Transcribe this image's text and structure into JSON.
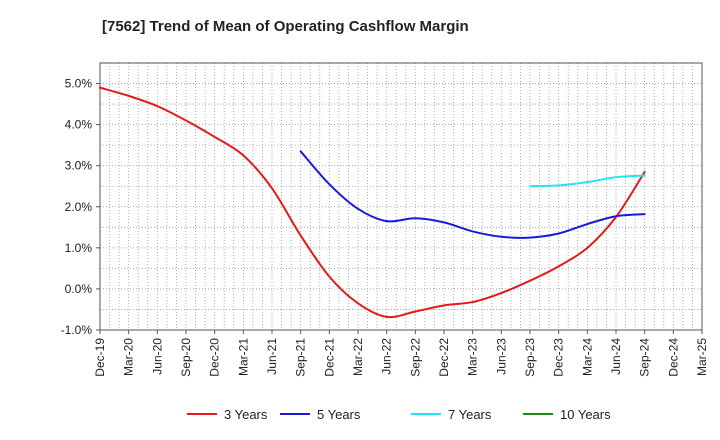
{
  "chart_data": {
    "type": "line",
    "title": "[7562]  Trend of Mean of Operating Cashflow Margin",
    "xlabel": "",
    "ylabel": "",
    "categories": [
      "Dec-19",
      "Mar-20",
      "Jun-20",
      "Sep-20",
      "Dec-20",
      "Mar-21",
      "Jun-21",
      "Sep-21",
      "Dec-21",
      "Mar-22",
      "Jun-22",
      "Sep-22",
      "Dec-22",
      "Mar-23",
      "Jun-23",
      "Sep-23",
      "Dec-23",
      "Mar-24",
      "Jun-24",
      "Sep-24",
      "Dec-24",
      "Mar-25"
    ],
    "ylim": [
      -1.0,
      5.5
    ],
    "yticks": [
      -1.0,
      0.0,
      1.0,
      2.0,
      3.0,
      4.0,
      5.0
    ],
    "ytick_labels": [
      "-1.0%",
      "0.0%",
      "1.0%",
      "2.0%",
      "3.0%",
      "4.0%",
      "5.0%"
    ],
    "grid": true,
    "legend_position": "bottom",
    "series": [
      {
        "name": "3 Years",
        "color": "#e31a1c",
        "values": [
          4.9,
          4.7,
          4.45,
          4.1,
          3.7,
          3.25,
          2.45,
          1.3,
          0.3,
          -0.35,
          -0.68,
          -0.55,
          -0.4,
          -0.32,
          -0.1,
          0.2,
          0.55,
          1.0,
          1.75,
          2.85,
          null,
          null
        ]
      },
      {
        "name": "5 Years",
        "color": "#1a1adb",
        "values": [
          null,
          null,
          null,
          null,
          null,
          null,
          null,
          3.35,
          2.55,
          1.95,
          1.65,
          1.72,
          1.62,
          1.4,
          1.27,
          1.25,
          1.35,
          1.58,
          1.77,
          1.82,
          null,
          null
        ]
      },
      {
        "name": "7 Years",
        "color": "#22e5ee",
        "values": [
          null,
          null,
          null,
          null,
          null,
          null,
          null,
          null,
          null,
          null,
          null,
          null,
          null,
          null,
          null,
          2.5,
          2.52,
          2.6,
          2.72,
          2.76,
          null,
          null
        ]
      },
      {
        "name": "10 Years",
        "color": "#1a8a1a",
        "values": [
          null,
          null,
          null,
          null,
          null,
          null,
          null,
          null,
          null,
          null,
          null,
          null,
          null,
          null,
          null,
          null,
          null,
          null,
          null,
          null,
          null,
          null
        ]
      }
    ]
  }
}
